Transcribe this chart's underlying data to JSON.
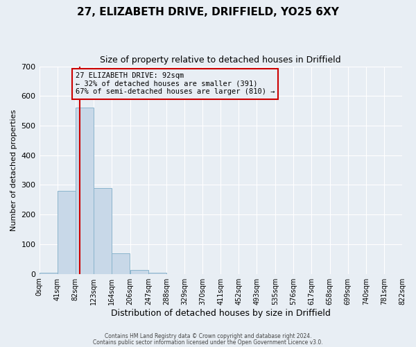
{
  "title": "27, ELIZABETH DRIVE, DRIFFIELD, YO25 6XY",
  "subtitle": "Size of property relative to detached houses in Driffield",
  "xlabel": "Distribution of detached houses by size in Driffield",
  "ylabel": "Number of detached properties",
  "bin_edges": [
    0,
    41,
    82,
    123,
    164,
    206,
    247,
    288,
    329,
    370,
    411,
    452,
    493,
    535,
    576,
    617,
    658,
    699,
    740,
    781,
    822
  ],
  "bin_heights": [
    5,
    280,
    560,
    290,
    70,
    13,
    5,
    0,
    0,
    0,
    0,
    0,
    0,
    0,
    0,
    0,
    0,
    0,
    0,
    0
  ],
  "bar_color": "#c8d8e8",
  "bar_edge_color": "#8ab4cc",
  "property_line_x": 92,
  "property_line_color": "#cc0000",
  "ylim": [
    0,
    700
  ],
  "yticks": [
    0,
    100,
    200,
    300,
    400,
    500,
    600,
    700
  ],
  "xtick_labels": [
    "0sqm",
    "41sqm",
    "82sqm",
    "123sqm",
    "164sqm",
    "206sqm",
    "247sqm",
    "288sqm",
    "329sqm",
    "370sqm",
    "411sqm",
    "452sqm",
    "493sqm",
    "535sqm",
    "576sqm",
    "617sqm",
    "658sqm",
    "699sqm",
    "740sqm",
    "781sqm",
    "822sqm"
  ],
  "annotation_title": "27 ELIZABETH DRIVE: 92sqm",
  "annotation_line1": "← 32% of detached houses are smaller (391)",
  "annotation_line2": "67% of semi-detached houses are larger (810) →",
  "annotation_box_color": "#cc0000",
  "footnote1": "Contains HM Land Registry data © Crown copyright and database right 2024.",
  "footnote2": "Contains public sector information licensed under the Open Government Licence v3.0.",
  "background_color": "#e8eef4",
  "grid_color": "#ffffff",
  "title_fontsize": 11,
  "subtitle_fontsize": 9,
  "ylabel_fontsize": 8,
  "xlabel_fontsize": 9,
  "ytick_fontsize": 8,
  "xtick_fontsize": 7
}
